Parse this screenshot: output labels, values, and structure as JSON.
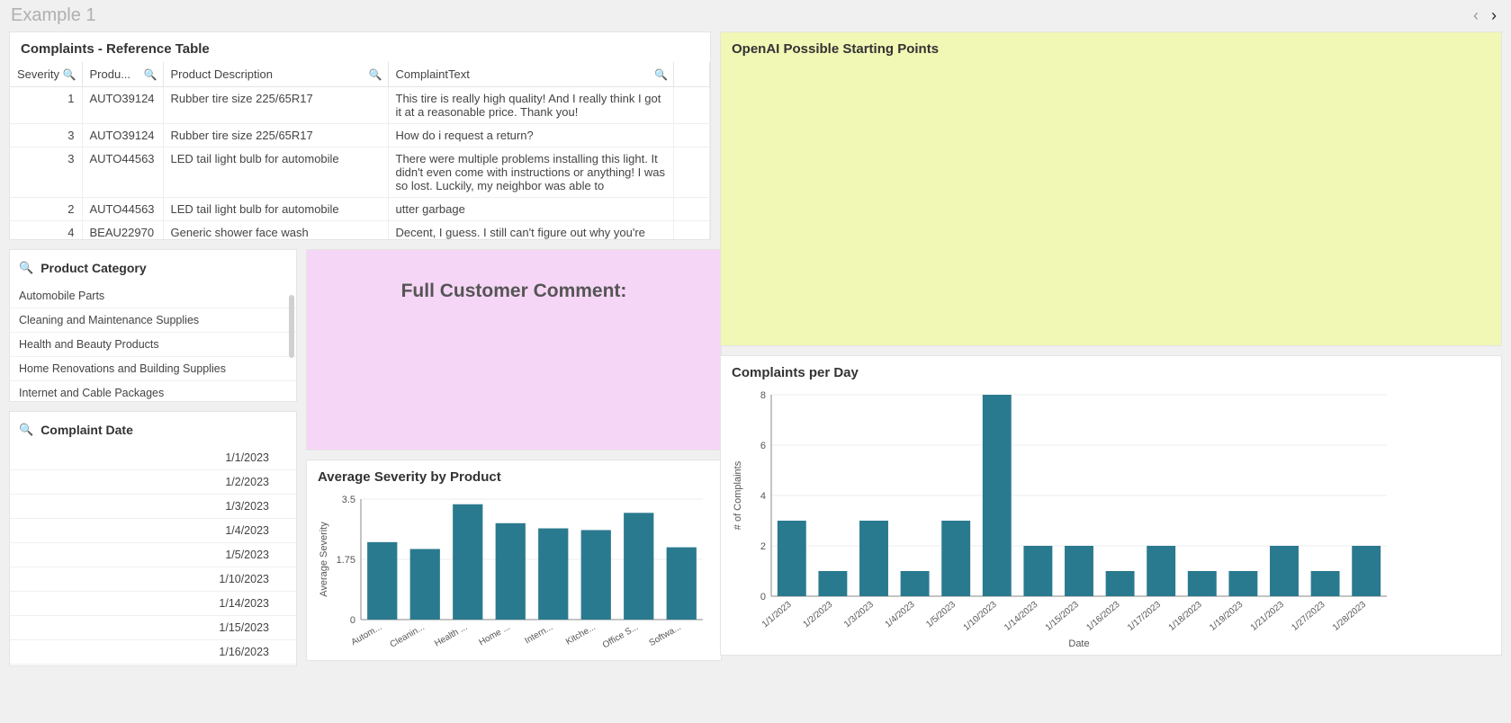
{
  "page_title": "Example 1",
  "reference_table": {
    "title": "Complaints - Reference Table",
    "columns": [
      "Severity",
      "Produ...",
      "Product Description",
      "ComplaintText"
    ],
    "rows": [
      {
        "severity": 1,
        "product_id": "AUTO39124",
        "desc": "Rubber tire size 225/65R17",
        "complaint": "This tire is really high quality! And I really think I got it at a reasonable price. Thank you!"
      },
      {
        "severity": 3,
        "product_id": "AUTO39124",
        "desc": "Rubber tire size 225/65R17",
        "complaint": "How do i request a return?"
      },
      {
        "severity": 3,
        "product_id": "AUTO44563",
        "desc": "LED tail light bulb for automobile",
        "complaint": "There were multiple problems installing this light. It didn't even come with instructions or anything! I was so lost. Luckily, my neighbor was able to"
      },
      {
        "severity": 2,
        "product_id": "AUTO44563",
        "desc": "LED tail light bulb for automobile",
        "complaint": "utter garbage"
      },
      {
        "severity": 4,
        "product_id": "BEAU22970",
        "desc": "Generic shower face wash",
        "complaint": "Decent, I guess. I still can't figure out why you're selling this at almost double the price of the"
      }
    ]
  },
  "category_filter": {
    "label": "Product Category",
    "items": [
      "Automobile Parts",
      "Cleaning and Maintenance Supplies",
      "Health and Beauty Products",
      "Home Renovations and Building Supplies",
      "Internet and Cable Packages"
    ]
  },
  "date_filter": {
    "label": "Complaint Date",
    "items": [
      "1/1/2023",
      "1/2/2023",
      "1/3/2023",
      "1/4/2023",
      "1/5/2023",
      "1/10/2023",
      "1/14/2023",
      "1/15/2023",
      "1/16/2023"
    ]
  },
  "comment_panel_title": "Full Customer Comment:",
  "severity_chart": {
    "title": "Average Severity by Product",
    "type": "bar",
    "categories": [
      "Autom...",
      "Cleanin...",
      "Health ...",
      "Home ...",
      "Intern...",
      "Kitche...",
      "Office S...",
      "Softwa..."
    ],
    "values": [
      2.25,
      2.05,
      3.35,
      2.8,
      2.65,
      2.6,
      3.1,
      2.1
    ],
    "y_label": "Average Severity",
    "ylim": [
      0,
      3.5
    ],
    "yticks": [
      0,
      1.75,
      3.5
    ],
    "bar_color": "#2a7a8f",
    "background_color": "#ffffff",
    "grid_color": "#dcdcdc",
    "axis_color": "#888888",
    "tick_font_size": 11,
    "xlabel_rotation": -30
  },
  "openai_panel_title": "OpenAI Possible Starting Points",
  "cpd_chart": {
    "title": "Complaints per Day",
    "type": "bar",
    "categories": [
      "1/1/2023",
      "1/2/2023",
      "1/3/2023",
      "1/4/2023",
      "1/5/2023",
      "1/10/2023",
      "1/14/2023",
      "1/15/2023",
      "1/16/2023",
      "1/17/2023",
      "1/18/2023",
      "1/19/2023",
      "1/21/2023",
      "1/27/2023",
      "1/28/2023"
    ],
    "values": [
      3,
      1,
      3,
      1,
      3,
      8,
      2,
      2,
      1,
      2,
      1,
      1,
      2,
      1,
      2
    ],
    "y_label": "# of Complaints",
    "x_label": "Date",
    "ylim": [
      0,
      8
    ],
    "yticks": [
      0,
      2,
      4,
      6,
      8
    ],
    "bar_color": "#2a7a8f",
    "background_color": "#ffffff",
    "grid_color": "#dcdcdc",
    "axis_color": "#888888",
    "tick_font_size": 11,
    "xlabel_rotation": -40
  }
}
